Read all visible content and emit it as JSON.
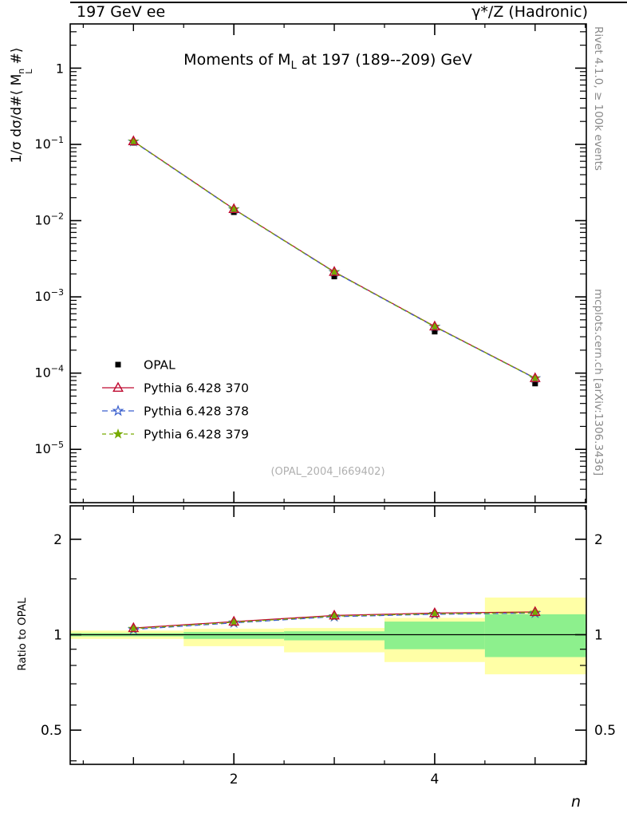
{
  "header": {
    "left": "197 GeV ee",
    "right": "γ*/Z (Hadronic)"
  },
  "right_margin": {
    "top": "Rivet 4.1.0, ≥ 100k events",
    "bottom": "mcplots.cern.ch [arXiv:1306.3436]"
  },
  "main_panel": {
    "title_pre": "Moments of M",
    "title_sub": "L",
    "title_post": " at 197 (189--209) GeV",
    "ylabel_pre": "1/σ  dσ/d#⟨ M",
    "ylabel_sup": "n",
    "ylabel_sub": "L",
    "ylabel_post": " #⟩",
    "watermark": "(OPAL_2004_I669402)"
  },
  "ratio_panel": {
    "ylabel": "Ratio to OPAL"
  },
  "xlabel": "n",
  "chart_data": {
    "type": "line",
    "title": "Moments of M_L at 197 (189--209) GeV",
    "x": [
      1,
      2,
      3,
      4,
      5
    ],
    "xlim": [
      0.37,
      5.51
    ],
    "xticks_major": [
      2,
      4
    ],
    "xticks_medium": [
      1,
      3,
      5
    ],
    "xticks_minor": [
      0.5,
      1.5,
      2.5,
      3.5,
      4.5,
      5.5
    ],
    "main": {
      "ylog": true,
      "ylim": [
        2e-06,
        3.8
      ],
      "ytick_exponents": [
        0,
        -1,
        -2,
        -3,
        -4,
        -5
      ],
      "series": [
        {
          "name": "OPAL",
          "marker": "filled-square",
          "color": "#000000",
          "values": [
            0.105,
            0.0129,
            0.00185,
            0.00035,
            7.3e-05
          ],
          "yerr": [
            0.003,
            0.0006,
            0.0001,
            2e-05,
            5e-06
          ]
        },
        {
          "name": "Pythia 6.428 370",
          "marker": "open-triangle",
          "color": "#bf0a30",
          "line": "solid",
          "values": [
            0.11,
            0.0142,
            0.00213,
            0.00041,
            8.6e-05
          ]
        },
        {
          "name": "Pythia 6.428 378",
          "marker": "open-star",
          "color": "#3a5fcd",
          "line": "dashed",
          "dash": "7 4",
          "values": [
            0.109,
            0.0141,
            0.00211,
            0.000406,
            8.54e-05
          ]
        },
        {
          "name": "Pythia 6.428 379",
          "marker": "filled-star",
          "color": "#77aa00",
          "line": "dashed",
          "dash": "5 4",
          "values": [
            0.1097,
            0.01413,
            0.00212,
            0.000408,
            8.58e-05
          ]
        }
      ]
    },
    "ratio": {
      "ylog": true,
      "ylim": [
        0.39,
        2.55
      ],
      "yticks": [
        0.5,
        1,
        2
      ],
      "yticks_minor": [
        0.4,
        0.6,
        0.7,
        0.8,
        0.9,
        1.5
      ],
      "series": [
        {
          "name": "Pythia 6.428 370",
          "marker": "open-triangle",
          "color": "#bf0a30",
          "line": "solid",
          "values": [
            1.05,
            1.1,
            1.15,
            1.17,
            1.18
          ]
        },
        {
          "name": "Pythia 6.428 378",
          "marker": "open-star",
          "color": "#3a5fcd",
          "line": "dashed",
          "dash": "7 4",
          "values": [
            1.04,
            1.09,
            1.14,
            1.16,
            1.17
          ]
        },
        {
          "name": "Pythia 6.428 379",
          "marker": "filled-star",
          "color": "#77aa00",
          "line": "dashed",
          "dash": "5 4",
          "values": [
            1.045,
            1.095,
            1.145,
            1.165,
            1.175
          ]
        }
      ],
      "bands": [
        {
          "x0": 0.37,
          "x1": 1.5,
          "yellow": [
            0.97,
            1.03
          ],
          "green": [
            0.988,
            1.012
          ]
        },
        {
          "x0": 1.5,
          "x1": 2.5,
          "yellow": [
            0.92,
            1.045
          ],
          "green": [
            0.97,
            1.02
          ]
        },
        {
          "x0": 2.5,
          "x1": 3.5,
          "yellow": [
            0.88,
            1.05
          ],
          "green": [
            0.96,
            1.025
          ]
        },
        {
          "x0": 3.5,
          "x1": 4.5,
          "yellow": [
            0.82,
            1.13
          ],
          "green": [
            0.9,
            1.1
          ]
        },
        {
          "x0": 4.5,
          "x1": 5.51,
          "yellow": [
            0.75,
            1.31
          ],
          "green": [
            0.85,
            1.16
          ]
        }
      ],
      "band_colors": {
        "yellow": "#ffffa6",
        "green": "#8df08d"
      }
    }
  }
}
